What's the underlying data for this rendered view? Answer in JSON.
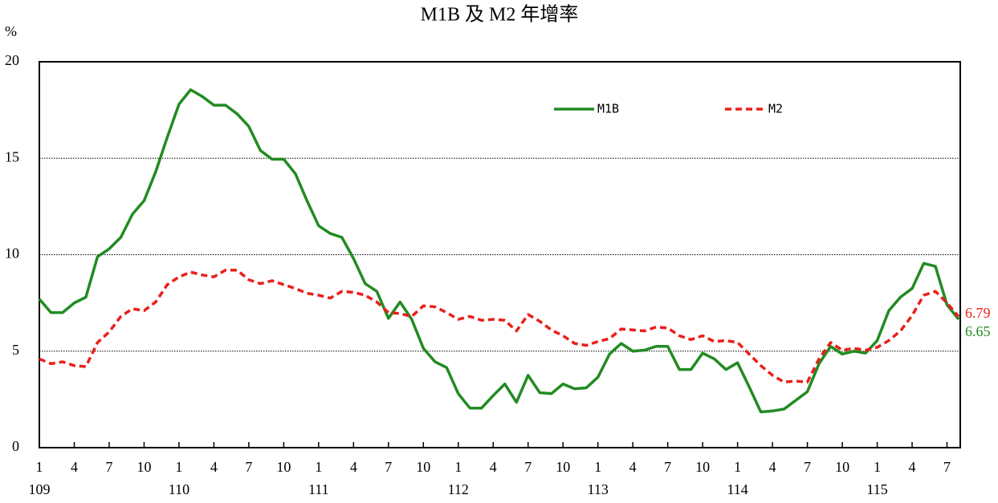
{
  "chart_data": {
    "type": "line",
    "title": "M1B 及 M2 年增率",
    "y_label": "%",
    "categories": [
      "1",
      null,
      null,
      "4",
      null,
      null,
      "7",
      null,
      null,
      "10",
      null,
      null,
      "1",
      null,
      null,
      "4",
      null,
      null,
      "7",
      null,
      null,
      "10",
      null,
      null,
      "1",
      null,
      null,
      "4",
      null,
      null,
      "7",
      null,
      null,
      "10",
      null,
      null,
      "1",
      null,
      null,
      "4",
      null,
      null,
      "7",
      null,
      null,
      "10",
      null,
      null,
      "1",
      null,
      null,
      "4",
      null,
      null,
      "7",
      null,
      null,
      "10",
      null,
      null,
      "1",
      null,
      null,
      "4",
      null,
      null,
      "7",
      null,
      null,
      "10",
      null,
      null,
      "1",
      null,
      null,
      "4",
      null,
      null,
      "7",
      null
    ],
    "year_labels": [
      "109",
      null,
      null,
      null,
      null,
      null,
      null,
      null,
      null,
      null,
      null,
      null,
      "110",
      null,
      null,
      null,
      null,
      null,
      null,
      null,
      null,
      null,
      null,
      null,
      "111",
      null,
      null,
      null,
      null,
      null,
      null,
      null,
      null,
      null,
      null,
      null,
      "112",
      null,
      null,
      null,
      null,
      null,
      null,
      null,
      null,
      null,
      null,
      null,
      "113",
      null,
      null,
      null,
      null,
      null,
      null,
      null,
      null,
      null,
      null,
      null,
      "114",
      null,
      null,
      null,
      null,
      null,
      null,
      null,
      null,
      null,
      null,
      null,
      "115",
      null,
      null,
      null,
      null,
      null,
      null,
      null
    ],
    "series": [
      {
        "name": "M1B",
        "color": "#228B22",
        "line_style": "solid",
        "values": [
          7.7,
          7.0,
          7.0,
          7.5,
          7.8,
          9.9,
          10.3,
          10.9,
          12.1,
          12.8,
          14.3,
          16.1,
          17.8,
          18.55,
          18.2,
          17.75,
          17.75,
          17.3,
          16.65,
          15.4,
          14.95,
          14.95,
          14.2,
          12.8,
          11.5,
          11.1,
          10.9,
          9.8,
          8.5,
          8.1,
          6.7,
          7.55,
          6.65,
          5.15,
          4.45,
          4.15,
          2.8,
          2.05,
          2.05,
          2.7,
          3.3,
          2.35,
          3.75,
          2.85,
          2.8,
          3.3,
          3.05,
          3.1,
          3.65,
          4.85,
          5.4,
          5.0,
          5.05,
          5.25,
          5.25,
          4.05,
          4.05,
          4.9,
          4.6,
          4.05,
          4.4,
          3.15,
          1.85,
          1.9,
          2.0,
          2.45,
          2.9,
          4.35,
          5.25,
          4.85,
          5.0,
          4.9,
          5.55,
          7.1,
          7.8,
          8.25,
          9.55,
          9.4,
          7.4,
          6.65
        ]
      },
      {
        "name": "M2",
        "color": "#E8201A",
        "line_style": "dashed",
        "values": [
          4.6,
          4.35,
          4.45,
          4.25,
          4.2,
          5.45,
          6.0,
          6.8,
          7.2,
          7.1,
          7.55,
          8.45,
          8.85,
          9.1,
          8.95,
          8.85,
          9.2,
          9.2,
          8.7,
          8.5,
          8.65,
          8.45,
          8.25,
          8.0,
          7.9,
          7.75,
          8.1,
          8.05,
          7.9,
          7.55,
          7.0,
          6.95,
          6.8,
          7.35,
          7.3,
          7.0,
          6.65,
          6.8,
          6.6,
          6.65,
          6.6,
          6.05,
          6.9,
          6.55,
          6.1,
          5.8,
          5.4,
          5.3,
          5.5,
          5.65,
          6.15,
          6.1,
          6.05,
          6.25,
          6.2,
          5.8,
          5.6,
          5.8,
          5.5,
          5.55,
          5.45,
          4.85,
          4.25,
          3.75,
          3.4,
          3.45,
          3.4,
          4.6,
          5.45,
          5.05,
          5.15,
          5.05,
          5.2,
          5.55,
          6.05,
          6.85,
          7.9,
          8.1,
          7.5,
          6.79
        ]
      }
    ],
    "ylim": [
      0,
      20
    ],
    "yticks": [
      0,
      5,
      10,
      15,
      20
    ],
    "grid": true,
    "end_labels": true
  }
}
